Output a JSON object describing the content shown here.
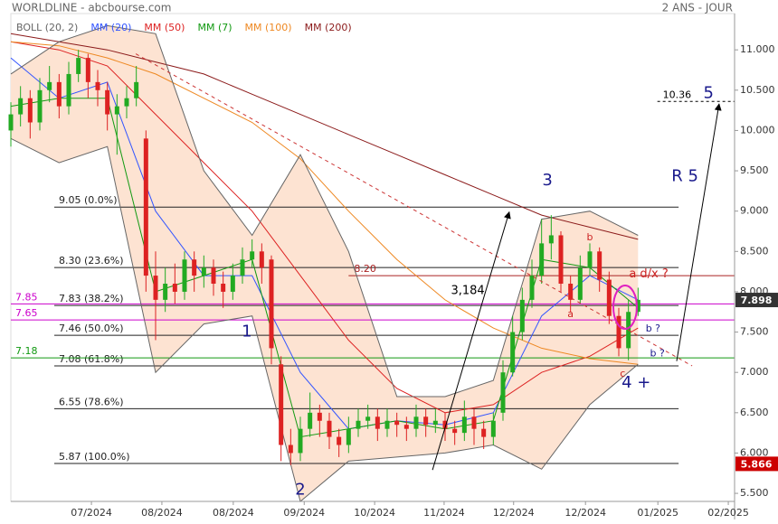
{
  "chart_data": {
    "type": "candlestick",
    "title": "WORLDLINE - abcbourse.com",
    "subtitle": "2 ANS - JOUR",
    "xlim": [
      0,
      150
    ],
    "ylim": [
      5.4,
      11.45
    ],
    "xticks": [
      {
        "value": 16.7,
        "label": "07/2024"
      },
      {
        "value": 31.3,
        "label": "08/2024"
      },
      {
        "value": 46.1,
        "label": "08/2024"
      },
      {
        "value": 60.8,
        "label": "09/2024"
      },
      {
        "value": 75.4,
        "label": "10/2024"
      },
      {
        "value": 89.8,
        "label": "11/2024"
      },
      {
        "value": 104.2,
        "label": "12/2024"
      },
      {
        "value": 119.1,
        "label": "12/2024"
      },
      {
        "value": 134.1,
        "label": "01/2025"
      },
      {
        "value": 148.7,
        "label": "02/2025"
      }
    ],
    "yticks": [
      {
        "value": 5.5,
        "label": "5.500"
      },
      {
        "value": 6,
        "label": "6.000"
      },
      {
        "value": 6.5,
        "label": "6.500"
      },
      {
        "value": 7,
        "label": "7.000"
      },
      {
        "value": 7.5,
        "label": "7.500"
      },
      {
        "value": 8,
        "label": "8.000"
      },
      {
        "value": 8.5,
        "label": "8.500"
      },
      {
        "value": 9,
        "label": "9.000"
      },
      {
        "value": 9.5,
        "label": "9.500"
      },
      {
        "value": 10,
        "label": "10.000"
      },
      {
        "value": 10.5,
        "label": "10.500"
      },
      {
        "value": 11,
        "label": "11.000"
      }
    ],
    "candles": {
      "up_color": "#22aa22",
      "down_color": "#dd2222",
      "x": [
        0,
        2,
        4,
        6,
        8,
        10,
        12,
        14,
        16,
        18,
        20,
        22,
        24,
        26,
        28,
        30,
        32,
        34,
        36,
        38,
        40,
        42,
        44,
        46,
        48,
        50,
        52,
        54,
        56,
        58,
        60,
        62,
        64,
        66,
        68,
        70,
        72,
        74,
        76,
        78,
        80,
        82,
        84,
        86,
        88,
        90,
        92,
        94,
        96,
        98,
        100,
        102,
        104,
        106,
        108,
        110,
        112,
        114,
        116,
        118,
        120,
        122,
        124,
        126,
        128,
        130
      ],
      "open": [
        10.0,
        10.2,
        10.4,
        10.1,
        10.5,
        10.6,
        10.3,
        10.7,
        10.9,
        10.6,
        10.5,
        10.2,
        10.3,
        10.4,
        9.9,
        8.2,
        7.9,
        8.1,
        8.0,
        8.4,
        8.2,
        8.3,
        8.1,
        8.0,
        8.2,
        8.4,
        8.5,
        8.4,
        7.1,
        6.1,
        6.0,
        6.3,
        6.5,
        6.4,
        6.2,
        6.1,
        6.3,
        6.4,
        6.45,
        6.3,
        6.4,
        6.35,
        6.3,
        6.45,
        6.35,
        6.4,
        6.3,
        6.25,
        6.45,
        6.3,
        6.2,
        6.5,
        7.0,
        7.5,
        7.9,
        8.2,
        8.6,
        8.7,
        8.1,
        7.9,
        8.3,
        8.5,
        8.15,
        7.7,
        7.3,
        7.75
      ],
      "high": [
        10.35,
        10.55,
        10.5,
        10.65,
        10.8,
        10.7,
        10.85,
        11.0,
        10.95,
        10.75,
        10.6,
        10.45,
        10.55,
        10.8,
        10.0,
        8.5,
        8.3,
        8.35,
        8.5,
        8.5,
        8.45,
        8.4,
        8.25,
        8.35,
        8.55,
        8.65,
        8.6,
        8.45,
        7.2,
        6.3,
        6.45,
        6.75,
        6.6,
        6.5,
        6.3,
        6.45,
        6.55,
        6.6,
        6.55,
        6.55,
        6.5,
        6.45,
        6.6,
        6.55,
        6.55,
        6.5,
        6.4,
        6.65,
        6.55,
        6.4,
        6.5,
        7.15,
        7.7,
        8.05,
        8.4,
        8.9,
        8.95,
        8.75,
        8.2,
        8.45,
        8.6,
        8.55,
        8.25,
        7.8,
        7.9,
        8.05
      ],
      "low": [
        9.8,
        10.05,
        9.9,
        10.0,
        10.35,
        10.15,
        10.2,
        10.6,
        10.4,
        10.3,
        10.0,
        9.7,
        10.15,
        10.3,
        8.0,
        7.4,
        7.75,
        7.85,
        7.9,
        8.0,
        8.05,
        7.95,
        7.8,
        7.9,
        8.1,
        8.3,
        8.1,
        7.1,
        5.9,
        5.85,
        5.9,
        6.2,
        6.2,
        6.05,
        5.95,
        6.0,
        6.2,
        6.3,
        6.15,
        6.2,
        6.2,
        6.15,
        6.2,
        6.2,
        6.25,
        6.15,
        6.1,
        6.15,
        6.1,
        6.05,
        6.1,
        6.4,
        6.95,
        7.4,
        7.8,
        8.1,
        8.4,
        8.0,
        7.75,
        7.85,
        8.2,
        8.0,
        7.6,
        7.2,
        7.15,
        7.7
      ],
      "close": [
        10.2,
        10.4,
        10.1,
        10.5,
        10.6,
        10.3,
        10.7,
        10.9,
        10.6,
        10.5,
        10.2,
        10.3,
        10.4,
        10.6,
        8.2,
        7.9,
        8.1,
        8.0,
        8.4,
        8.2,
        8.3,
        8.1,
        8.0,
        8.2,
        8.4,
        8.5,
        8.3,
        7.3,
        6.1,
        6.0,
        6.3,
        6.5,
        6.4,
        6.2,
        6.1,
        6.3,
        6.4,
        6.45,
        6.3,
        6.4,
        6.35,
        6.3,
        6.45,
        6.35,
        6.4,
        6.3,
        6.25,
        6.45,
        6.3,
        6.2,
        6.4,
        7.0,
        7.5,
        7.9,
        8.2,
        8.6,
        8.7,
        8.1,
        7.9,
        8.3,
        8.5,
        8.15,
        7.7,
        7.3,
        7.75,
        7.9
      ]
    },
    "bollinger": {
      "name": "BOLL (20, 2)",
      "color": "#666666",
      "fill": "#fde3d2",
      "upper": [
        10.7,
        11.1,
        11.3,
        11.2,
        9.5,
        8.7,
        9.7,
        8.5,
        6.7,
        6.7,
        6.9,
        8.9,
        9.0,
        8.7
      ],
      "lower": [
        9.9,
        9.6,
        9.8,
        7.0,
        7.6,
        7.7,
        5.4,
        5.9,
        5.95,
        6.0,
        6.1,
        5.8,
        6.6,
        7.1
      ]
    },
    "indicators": {
      "x": [
        0,
        10,
        20,
        30,
        40,
        50,
        60,
        70,
        80,
        90,
        100,
        110,
        120,
        130
      ],
      "series": [
        {
          "name": "MM (20)",
          "color": "#3355ff",
          "values": [
            10.9,
            10.4,
            10.6,
            9.0,
            8.2,
            8.2,
            7.0,
            6.3,
            6.4,
            6.35,
            6.5,
            7.7,
            8.2,
            7.9
          ]
        },
        {
          "name": "MM (50)",
          "color": "#dd2222",
          "values": [
            11.1,
            11.0,
            10.8,
            10.2,
            9.6,
            9.0,
            8.2,
            7.4,
            6.8,
            6.5,
            6.6,
            7.0,
            7.2,
            7.55
          ]
        },
        {
          "name": "MM (7)",
          "color": "#119911",
          "values": [
            10.3,
            10.4,
            10.4,
            8.0,
            8.2,
            8.4,
            6.2,
            6.3,
            6.4,
            6.3,
            6.4,
            8.4,
            8.3,
            7.8
          ]
        },
        {
          "name": "MM (100)",
          "color": "#ee8822",
          "values": [
            11.1,
            11.05,
            10.9,
            10.7,
            10.4,
            10.1,
            9.65,
            9.0,
            8.4,
            7.9,
            7.55,
            7.3,
            7.17,
            7.1
          ]
        },
        {
          "name": "MM (200)",
          "color": "#8b1a1a",
          "values": [
            11.2,
            11.1,
            11.0,
            10.85,
            10.7,
            10.45,
            10.2,
            9.95,
            9.7,
            9.45,
            9.2,
            8.95,
            8.8,
            8.65
          ]
        }
      ]
    },
    "fib_levels": {
      "x": [
        9,
        138.4
      ],
      "levels": [
        {
          "value": 9.05,
          "label": "9.05  (0.0%)"
        },
        {
          "value": 8.3,
          "label": "8.30  (23.6%)"
        },
        {
          "value": 7.83,
          "label": "7.83  (38.2%)"
        },
        {
          "value": 7.46,
          "label": "7.46  (50.0%)"
        },
        {
          "value": 7.08,
          "label": "7.08  (61.8%)"
        },
        {
          "value": 6.55,
          "label": "6.55  (78.6%)"
        },
        {
          "value": 5.87,
          "label": "5.87  (100.0%)"
        }
      ]
    },
    "hlines": [
      {
        "value": 7.85,
        "label": "7.85",
        "color": "#cc00cc",
        "x": [
          0,
          150
        ]
      },
      {
        "value": 7.65,
        "label": "7.65",
        "color": "#cc00cc",
        "x": [
          0,
          150
        ]
      },
      {
        "value": 7.18,
        "label": "7.18",
        "color": "#119911",
        "x": [
          0,
          150
        ]
      },
      {
        "value": 8.2,
        "label": "8.20",
        "color": "#aa2222",
        "x": [
          70,
          150
        ]
      },
      {
        "value": 10.36,
        "label": "10.36",
        "color": "#000000",
        "x": [
          134,
          150
        ],
        "dashed": true
      }
    ],
    "trendlines": [
      {
        "x": [
          25.9,
          141.2
        ],
        "y": [
          10.95,
          7.08
        ],
        "color": "#cc3333",
        "dashed": true
      },
      {
        "x": [
          87.4,
          103.3
        ],
        "y": [
          5.79,
          8.99
        ],
        "color": "#000000",
        "arrow": true
      },
      {
        "x": [
          138,
          146.8
        ],
        "y": [
          7.14,
          10.33
        ],
        "color": "#000000",
        "arrow": true
      }
    ],
    "annotations": [
      {
        "text": "1",
        "x": 48.9,
        "y": 7.5,
        "color": "#1a1a8c",
        "kind": "wave"
      },
      {
        "text": "2",
        "x": 60,
        "y": 5.54,
        "color": "#1a1a8c",
        "kind": "wave"
      },
      {
        "text": "3",
        "x": 111.2,
        "y": 9.38,
        "color": "#1a1a8c",
        "kind": "wave"
      },
      {
        "text": "4 +",
        "x": 129.6,
        "y": 6.87,
        "color": "#1a1a8c",
        "kind": "wave"
      },
      {
        "text": "R 5",
        "x": 139.7,
        "y": 9.43,
        "color": "#1a1a8c",
        "kind": "wave"
      },
      {
        "text": "5",
        "x": 144.6,
        "y": 10.46,
        "color": "#1a1a8c",
        "kind": "wave"
      },
      {
        "text": "3,184",
        "x": 94.7,
        "y": 8.01,
        "color": "#000000",
        "kind": "note"
      },
      {
        "text": "a",
        "x": 116,
        "y": 7.72,
        "color": "#cc2222",
        "kind": "note"
      },
      {
        "text": "b",
        "x": 120,
        "y": 8.67,
        "color": "#cc2222",
        "kind": "note"
      },
      {
        "text": "c",
        "x": 126.8,
        "y": 6.98,
        "color": "#cc2222",
        "kind": "note"
      },
      {
        "text": "a d/x ?",
        "x": 132.2,
        "y": 8.22,
        "color": "#cc2222",
        "kind": "note"
      },
      {
        "text": "b ?",
        "x": 133.1,
        "y": 7.54,
        "color": "#1a1a8c",
        "kind": "note"
      },
      {
        "text": "b ?",
        "x": 134,
        "y": 7.23,
        "color": "#1a1a8c",
        "kind": "note"
      }
    ],
    "price_labels": [
      {
        "value": 7.898,
        "color": "#333333"
      },
      {
        "value": 5.866,
        "color": "#cc0000"
      }
    ]
  }
}
